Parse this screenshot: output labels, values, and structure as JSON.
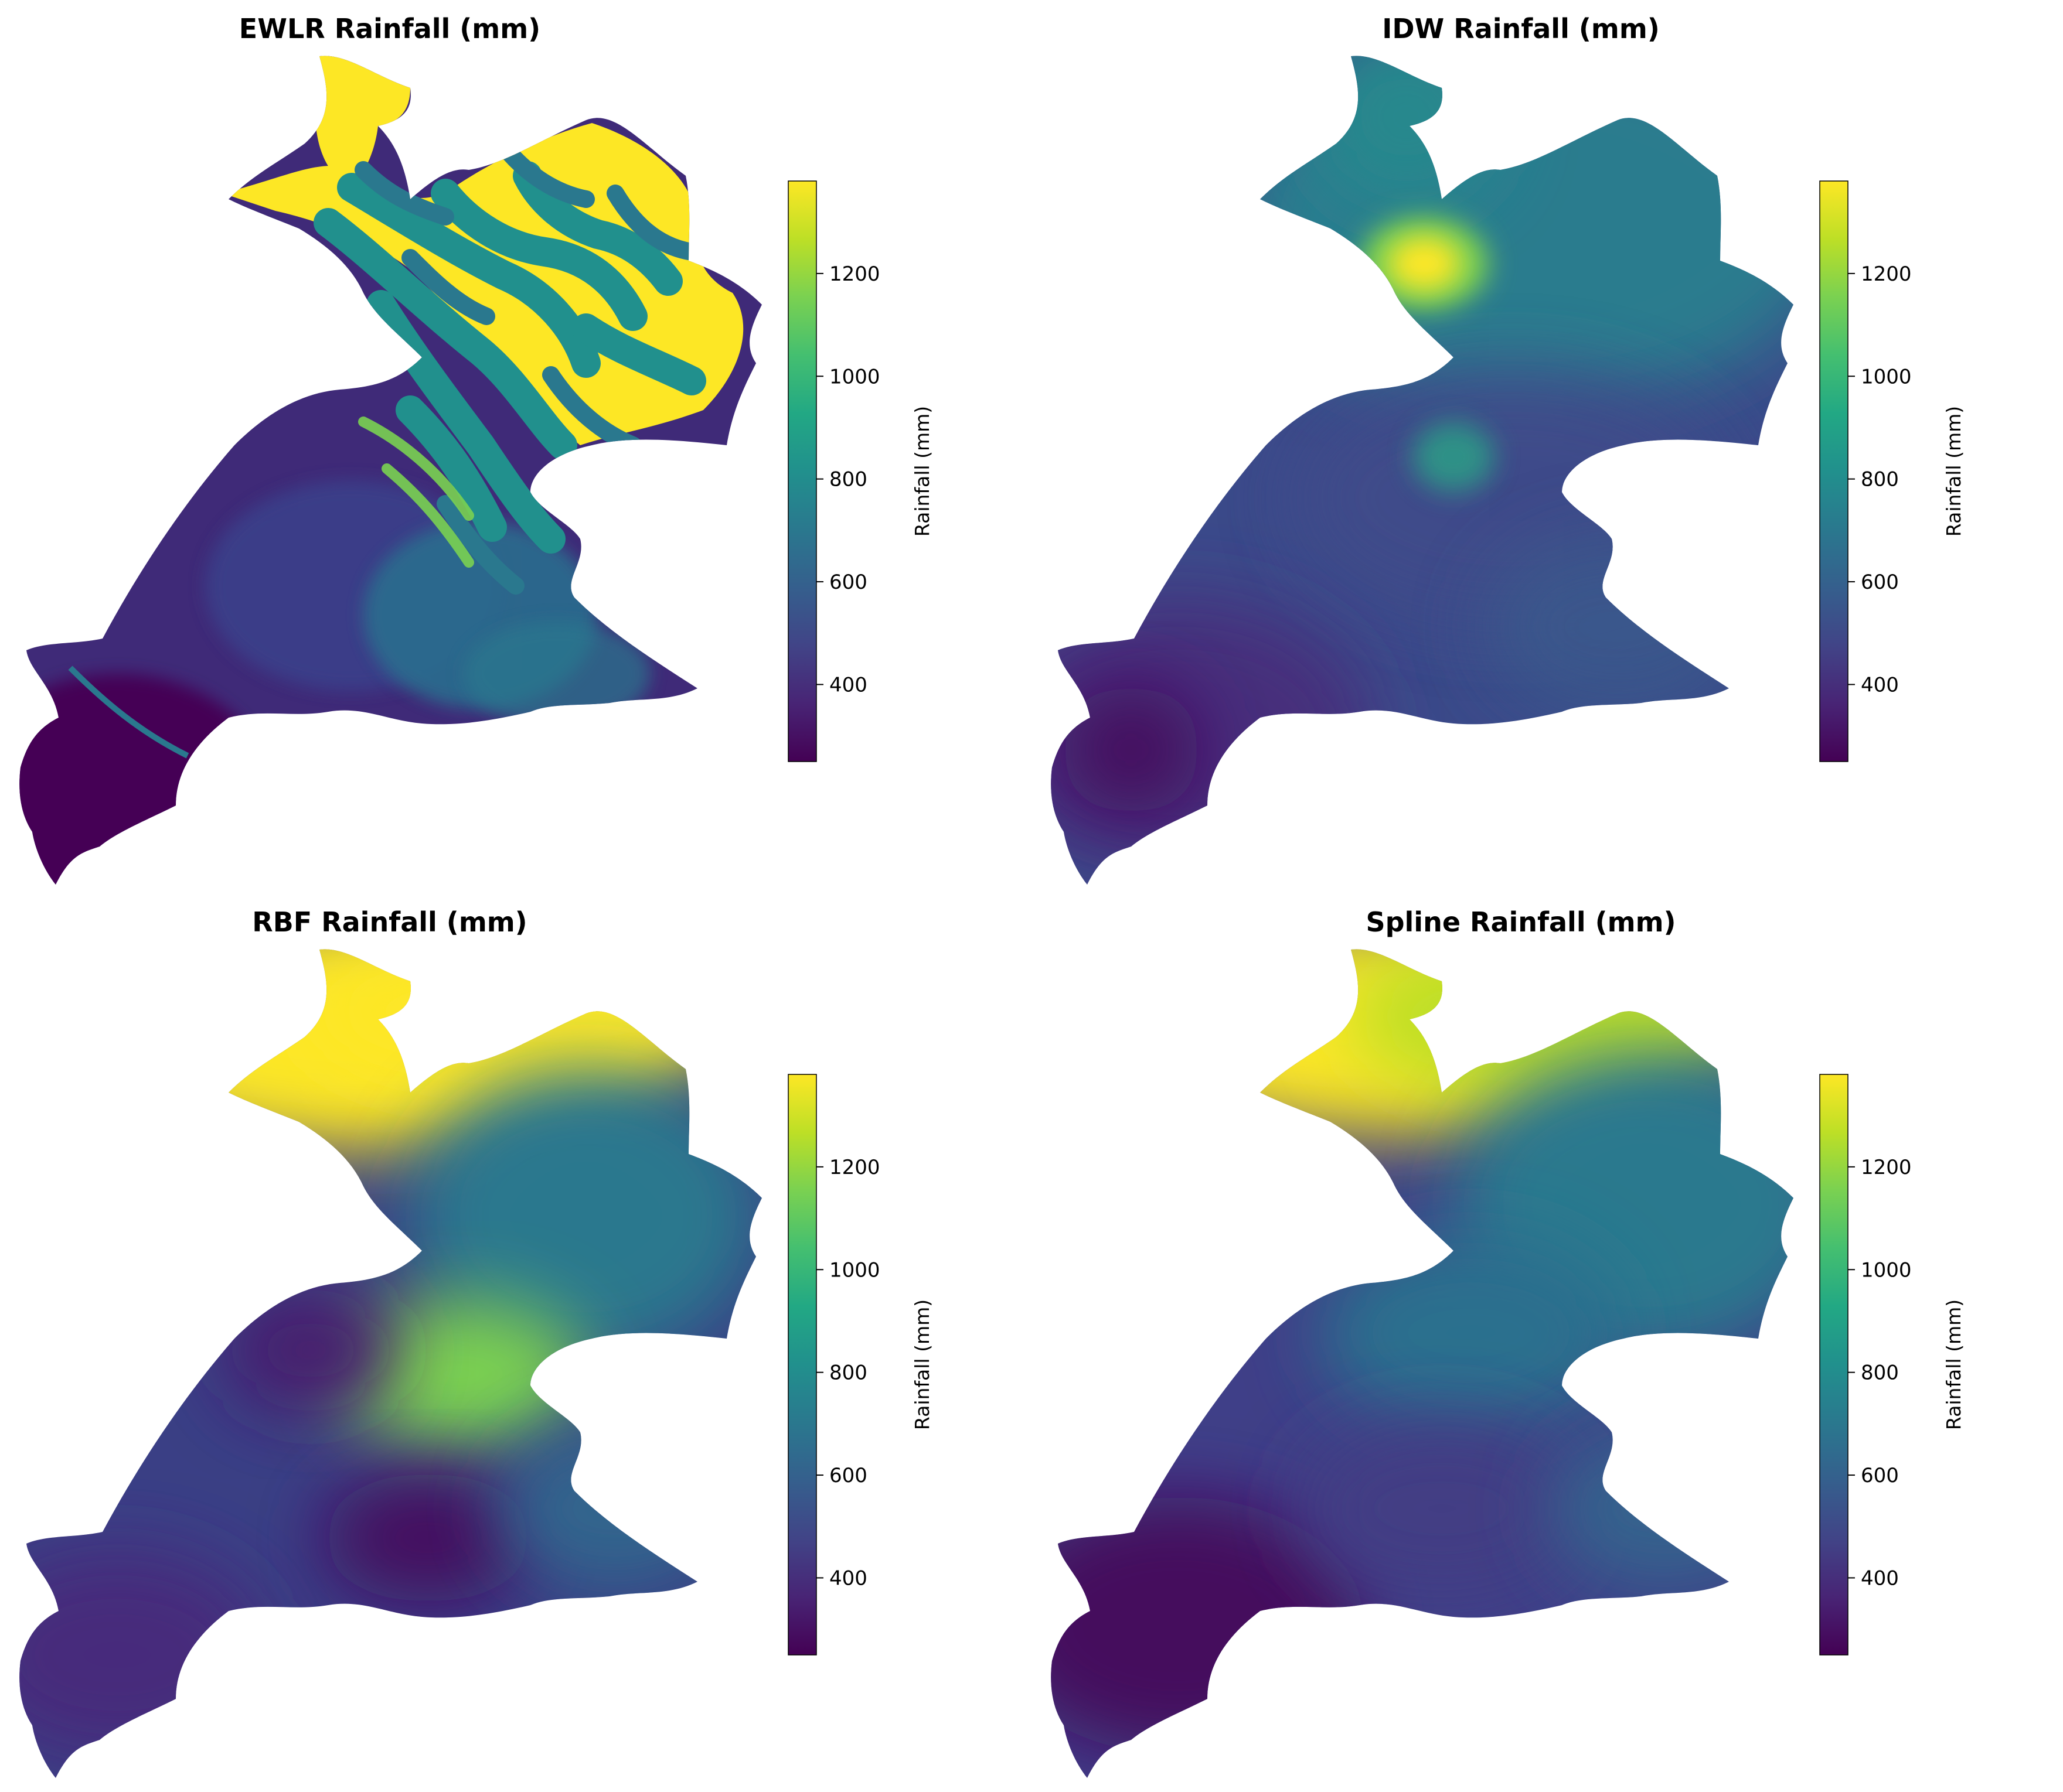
{
  "figure": {
    "panels": [
      {
        "id": "ewlr",
        "title": "EWLR Rainfall (mm)",
        "style": "terrain"
      },
      {
        "id": "idw",
        "title": "IDW Rainfall (mm)",
        "style": "idw"
      },
      {
        "id": "rbf",
        "title": "RBF Rainfall (mm)",
        "style": "rbf"
      },
      {
        "id": "spline",
        "title": "Spline Rainfall (mm)",
        "style": "spline"
      }
    ],
    "colorbar": {
      "label": "Rainfall (mm)",
      "colormap": "viridis",
      "min": 250,
      "max": 1380,
      "ticks": [
        "400",
        "600",
        "800",
        "1000",
        "1200"
      ],
      "tick_values": [
        400,
        600,
        800,
        1000,
        1200
      ]
    },
    "colors": {
      "viridis_low": "#440154",
      "viridis_mid": "#21908d",
      "viridis_high": "#fde725"
    }
  }
}
